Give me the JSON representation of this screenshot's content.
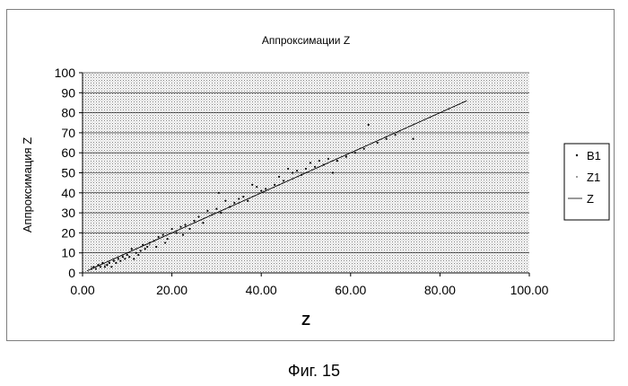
{
  "caption": "Фиг. 15",
  "chart_data": {
    "type": "scatter",
    "title": "Аппроксимации Z",
    "xlabel": "Z",
    "ylabel": "Аппроксимация Z",
    "xlim": [
      0,
      100
    ],
    "ylim": [
      0,
      100
    ],
    "x_ticks": [
      "0.00",
      "20.00",
      "40.00",
      "60.00",
      "80.00",
      "100.00"
    ],
    "y_ticks": [
      "0",
      "10",
      "20",
      "30",
      "40",
      "50",
      "60",
      "70",
      "80",
      "90",
      "100"
    ],
    "grid": true,
    "plot_background": "dotted gray",
    "legend_position": "right",
    "series": [
      {
        "name": "B1",
        "type": "scatter",
        "color": "#000000",
        "points": [
          [
            2,
            2
          ],
          [
            2.5,
            3
          ],
          [
            3,
            2
          ],
          [
            3.5,
            4
          ],
          [
            4,
            3
          ],
          [
            4.5,
            5
          ],
          [
            5,
            3
          ],
          [
            5.5,
            4
          ],
          [
            6,
            5
          ],
          [
            6.5,
            3
          ],
          [
            7,
            6
          ],
          [
            7.5,
            5
          ],
          [
            8,
            7
          ],
          [
            8.5,
            6
          ],
          [
            9,
            8
          ],
          [
            9.5,
            7
          ],
          [
            10,
            9
          ],
          [
            10.5,
            8
          ],
          [
            11,
            12
          ],
          [
            11.5,
            7
          ],
          [
            12,
            10
          ],
          [
            12.5,
            9
          ],
          [
            13,
            11
          ],
          [
            13.5,
            14
          ],
          [
            14,
            12
          ],
          [
            14.5,
            13
          ],
          [
            15,
            15
          ],
          [
            16,
            16
          ],
          [
            16.5,
            13
          ],
          [
            17,
            18
          ],
          [
            18,
            19
          ],
          [
            18.5,
            15
          ],
          [
            19,
            17
          ],
          [
            20,
            22
          ],
          [
            21,
            20
          ],
          [
            22,
            23
          ],
          [
            22.5,
            19
          ],
          [
            23,
            24
          ],
          [
            24,
            22
          ],
          [
            25,
            26
          ],
          [
            26,
            28
          ],
          [
            27,
            25
          ],
          [
            28,
            31
          ],
          [
            29,
            29
          ],
          [
            30,
            32
          ],
          [
            30.5,
            40
          ],
          [
            31,
            30
          ],
          [
            32,
            36
          ],
          [
            33,
            33
          ],
          [
            34,
            35
          ],
          [
            35,
            37
          ],
          [
            36,
            38
          ],
          [
            37,
            36
          ],
          [
            38,
            44
          ],
          [
            39,
            43
          ],
          [
            40,
            41
          ],
          [
            41,
            42
          ],
          [
            43,
            44
          ],
          [
            44,
            48
          ],
          [
            45,
            46
          ],
          [
            46,
            52
          ],
          [
            47,
            50
          ],
          [
            48,
            51
          ],
          [
            49,
            49
          ],
          [
            50,
            52
          ],
          [
            51,
            55
          ],
          [
            52,
            53
          ],
          [
            53,
            56
          ],
          [
            54,
            54
          ],
          [
            55,
            57
          ],
          [
            56,
            50
          ],
          [
            57,
            56
          ],
          [
            59,
            58
          ],
          [
            61,
            60
          ],
          [
            63,
            62
          ],
          [
            64,
            74
          ],
          [
            66,
            65
          ],
          [
            68,
            67
          ],
          [
            70,
            69
          ],
          [
            74,
            67
          ]
        ]
      },
      {
        "name": "Z1",
        "type": "scatter",
        "color": "#555555",
        "points": [
          [
            2,
            3
          ],
          [
            3,
            3
          ],
          [
            4,
            4
          ],
          [
            5,
            4
          ],
          [
            6,
            6
          ],
          [
            7,
            7
          ],
          [
            8,
            8
          ],
          [
            9,
            9
          ],
          [
            10,
            10
          ],
          [
            11,
            10
          ],
          [
            12,
            12
          ],
          [
            13,
            13
          ],
          [
            14,
            14
          ],
          [
            15,
            14
          ],
          [
            17,
            17
          ],
          [
            18,
            18
          ],
          [
            19,
            19
          ],
          [
            21,
            21
          ],
          [
            23,
            23
          ],
          [
            25,
            25
          ],
          [
            27,
            27
          ],
          [
            29,
            29
          ],
          [
            31,
            31
          ],
          [
            33,
            33
          ],
          [
            35,
            35
          ],
          [
            38,
            38
          ],
          [
            41,
            41
          ],
          [
            44,
            44
          ],
          [
            47,
            47
          ],
          [
            50,
            50
          ],
          [
            53,
            53
          ],
          [
            56,
            56
          ],
          [
            59,
            59
          ],
          [
            62,
            62
          ],
          [
            65,
            65
          ],
          [
            68,
            68
          ],
          [
            71,
            71
          ],
          [
            74,
            74
          ],
          [
            78,
            78
          ],
          [
            82,
            82
          ]
        ]
      },
      {
        "name": "Z",
        "type": "line",
        "color": "#000000",
        "points": [
          [
            1,
            1
          ],
          [
            86,
            86
          ]
        ]
      }
    ]
  }
}
